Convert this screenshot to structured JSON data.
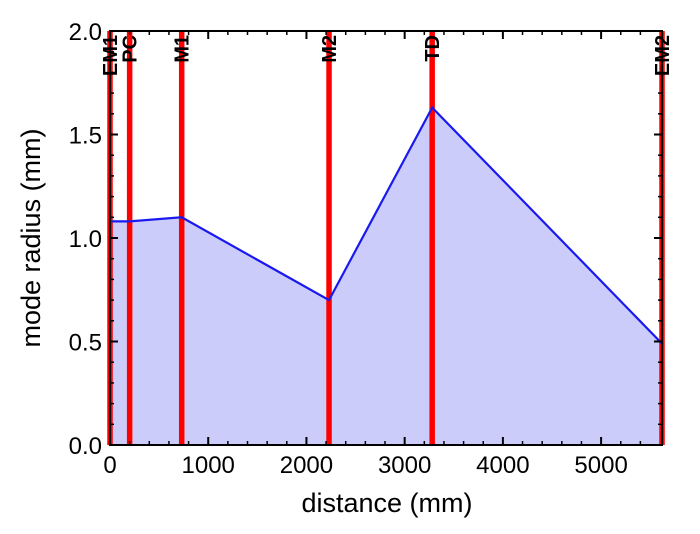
{
  "chart_data": {
    "type": "area",
    "title": "",
    "xlabel": "distance (mm)",
    "ylabel": "mode radius (mm)",
    "xlim": [
      0,
      5620
    ],
    "ylim": [
      0,
      2.0
    ],
    "grid": false,
    "x_ticks": [
      0,
      1000,
      2000,
      3000,
      4000,
      5000
    ],
    "x_tick_labels": [
      "0",
      "1000",
      "2000",
      "3000",
      "4000",
      "5000"
    ],
    "x_minor_ticks": [
      200,
      400,
      600,
      800,
      1200,
      1400,
      1600,
      1800,
      2200,
      2400,
      2600,
      2800,
      3200,
      3400,
      3600,
      3800,
      4200,
      4400,
      4600,
      4800,
      5200,
      5400
    ],
    "y_ticks": [
      0.0,
      0.5,
      1.0,
      1.5,
      2.0
    ],
    "y_tick_labels": [
      "0.0",
      "0.5",
      "1.0",
      "1.5",
      "2.0"
    ],
    "y_minor_ticks": [
      0.1,
      0.2,
      0.3,
      0.4,
      0.6,
      0.7,
      0.8,
      0.9,
      1.1,
      1.2,
      1.3,
      1.4,
      1.6,
      1.7,
      1.8,
      1.9
    ],
    "series": [
      {
        "name": "mode radius",
        "x": [
          0,
          200,
          730,
          2230,
          3280,
          5620
        ],
        "y": [
          1.08,
          1.08,
          1.1,
          0.7,
          1.63,
          0.49
        ]
      }
    ],
    "markers": [
      {
        "label": "EM1",
        "x": 0
      },
      {
        "label": "PC",
        "x": 200
      },
      {
        "label": "M1",
        "x": 730
      },
      {
        "label": "M2",
        "x": 2230
      },
      {
        "label": "TD",
        "x": 3280
      },
      {
        "label": "EM2",
        "x": 5620
      }
    ],
    "colors": {
      "line": "#1a1aee",
      "fill": "#ccccfa",
      "marker": "#ff0000",
      "axis": "#000000"
    }
  }
}
